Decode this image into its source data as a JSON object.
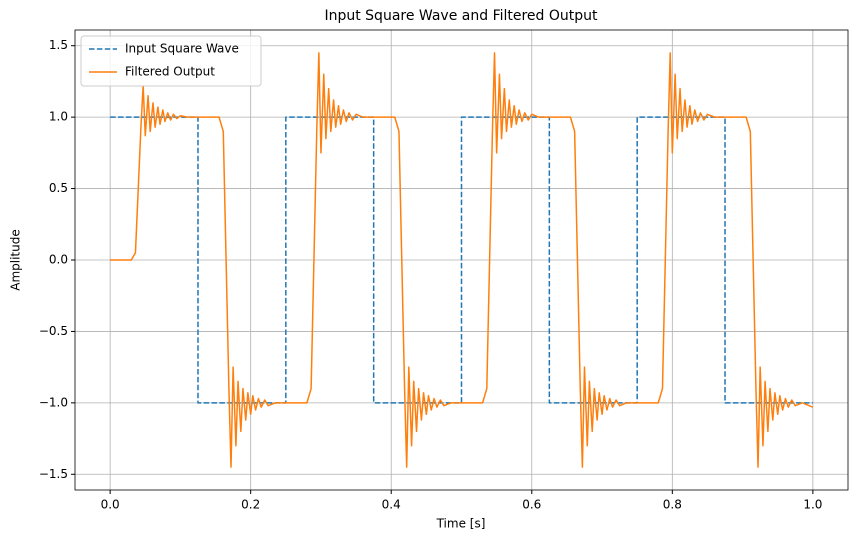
{
  "chart_data": {
    "type": "line",
    "title": "Input Square Wave and Filtered Output",
    "x_label": "Time [s]",
    "y_label": "Amplitude",
    "xlim": [
      -0.05,
      1.05
    ],
    "ylim": [
      -1.61,
      1.61
    ],
    "xticks": [
      {
        "value": 0,
        "label": "0.0"
      },
      0.2,
      0.4,
      0.6,
      0.8,
      {
        "value": 1,
        "label": "1.0"
      }
    ],
    "yticks": [
      {
        "value": -1.5,
        "label": "−1.5"
      },
      {
        "value": -1,
        "label": "−1.0"
      },
      {
        "value": -0.5,
        "label": "−0.5"
      },
      {
        "value": 0,
        "label": "0.0"
      },
      0.5,
      {
        "value": 1,
        "label": "1.0"
      },
      1.5
    ],
    "grid": true,
    "legend": "upper-left",
    "series": [
      {
        "name": "Input Square Wave",
        "color": "#1f77b4",
        "dash": true,
        "x": [
          0,
          0.125,
          0.125,
          0.25,
          0.25,
          0.375,
          0.375,
          0.5,
          0.5,
          0.625,
          0.625,
          0.75,
          0.75,
          0.875,
          0.875,
          1.0
        ],
        "values": [
          1,
          1,
          -1,
          -1,
          1,
          1,
          -1,
          -1,
          1,
          1,
          -1,
          -1,
          1,
          1,
          -1,
          -1
        ]
      },
      {
        "name": "Filtered Output",
        "color": "#ff7f0e",
        "dash": false,
        "x": [
          0,
          0.03,
          0.036,
          0.04,
          0.044,
          0.047,
          0.05,
          0.054,
          0.057,
          0.061,
          0.064,
          0.068,
          0.071,
          0.075,
          0.078,
          0.082,
          0.086,
          0.09,
          0.095,
          0.1,
          0.11,
          0.155,
          0.161,
          0.165,
          0.169,
          0.172,
          0.175,
          0.179,
          0.182,
          0.186,
          0.189,
          0.193,
          0.196,
          0.2,
          0.203,
          0.207,
          0.211,
          0.215,
          0.22,
          0.225,
          0.235,
          0.28,
          0.286,
          0.29,
          0.294,
          0.297,
          0.3,
          0.304,
          0.307,
          0.311,
          0.314,
          0.318,
          0.321,
          0.325,
          0.328,
          0.332,
          0.336,
          0.34,
          0.345,
          0.35,
          0.36,
          0.405,
          0.411,
          0.415,
          0.419,
          0.422,
          0.425,
          0.429,
          0.432,
          0.436,
          0.439,
          0.443,
          0.446,
          0.45,
          0.453,
          0.457,
          0.461,
          0.465,
          0.47,
          0.475,
          0.485,
          0.53,
          0.536,
          0.54,
          0.544,
          0.547,
          0.55,
          0.554,
          0.557,
          0.561,
          0.564,
          0.568,
          0.571,
          0.575,
          0.578,
          0.582,
          0.586,
          0.59,
          0.595,
          0.6,
          0.61,
          0.655,
          0.661,
          0.665,
          0.669,
          0.672,
          0.675,
          0.679,
          0.682,
          0.686,
          0.689,
          0.693,
          0.696,
          0.7,
          0.703,
          0.707,
          0.711,
          0.715,
          0.72,
          0.725,
          0.735,
          0.78,
          0.786,
          0.79,
          0.794,
          0.797,
          0.8,
          0.804,
          0.807,
          0.811,
          0.814,
          0.818,
          0.821,
          0.825,
          0.828,
          0.832,
          0.836,
          0.84,
          0.845,
          0.85,
          0.86,
          0.905,
          0.911,
          0.915,
          0.919,
          0.922,
          0.925,
          0.929,
          0.932,
          0.936,
          0.939,
          0.943,
          0.946,
          0.95,
          0.953,
          0.957,
          0.961,
          0.965,
          0.97,
          0.975,
          0.985,
          1.0
        ],
        "values": [
          0,
          0,
          0.05,
          0.5,
          0.95,
          1.22,
          0.87,
          1.15,
          0.9,
          1.1,
          0.93,
          1.07,
          0.95,
          1.05,
          0.97,
          1.03,
          0.98,
          1.02,
          0.99,
          1.01,
          1.0,
          1.0,
          0.9,
          0.0,
          -0.9,
          -1.45,
          -0.75,
          -1.3,
          -0.85,
          -1.2,
          -0.9,
          -1.12,
          -0.93,
          -1.08,
          -0.95,
          -1.05,
          -0.97,
          -1.03,
          -0.98,
          -1.02,
          -1.0,
          -1.0,
          -0.9,
          0.0,
          0.9,
          1.45,
          0.75,
          1.3,
          0.85,
          1.2,
          0.9,
          1.12,
          0.93,
          1.08,
          0.95,
          1.05,
          0.97,
          1.03,
          0.98,
          1.02,
          1.0,
          1.0,
          0.9,
          0.0,
          -0.9,
          -1.45,
          -0.75,
          -1.3,
          -0.85,
          -1.2,
          -0.9,
          -1.12,
          -0.93,
          -1.08,
          -0.95,
          -1.05,
          -0.97,
          -1.03,
          -0.98,
          -1.02,
          -1.0,
          -1.0,
          -0.9,
          0.0,
          0.9,
          1.45,
          0.75,
          1.3,
          0.85,
          1.2,
          0.9,
          1.12,
          0.93,
          1.08,
          0.95,
          1.05,
          0.97,
          1.03,
          0.98,
          1.02,
          1.0,
          1.0,
          0.9,
          0.0,
          -0.9,
          -1.45,
          -0.75,
          -1.3,
          -0.85,
          -1.2,
          -0.9,
          -1.12,
          -0.93,
          -1.08,
          -0.95,
          -1.05,
          -0.97,
          -1.03,
          -0.98,
          -1.02,
          -1.0,
          -1.0,
          -0.9,
          0.0,
          0.9,
          1.45,
          0.75,
          1.3,
          0.85,
          1.2,
          0.9,
          1.12,
          0.93,
          1.08,
          0.95,
          1.05,
          0.97,
          1.03,
          0.98,
          1.02,
          1.0,
          1.0,
          0.9,
          0.0,
          -0.9,
          -1.45,
          -0.75,
          -1.3,
          -0.85,
          -1.2,
          -0.9,
          -1.12,
          -0.93,
          -1.08,
          -0.95,
          -1.05,
          -0.97,
          -1.03,
          -0.98,
          -1.02,
          -1.0,
          -1.03
        ]
      }
    ]
  }
}
